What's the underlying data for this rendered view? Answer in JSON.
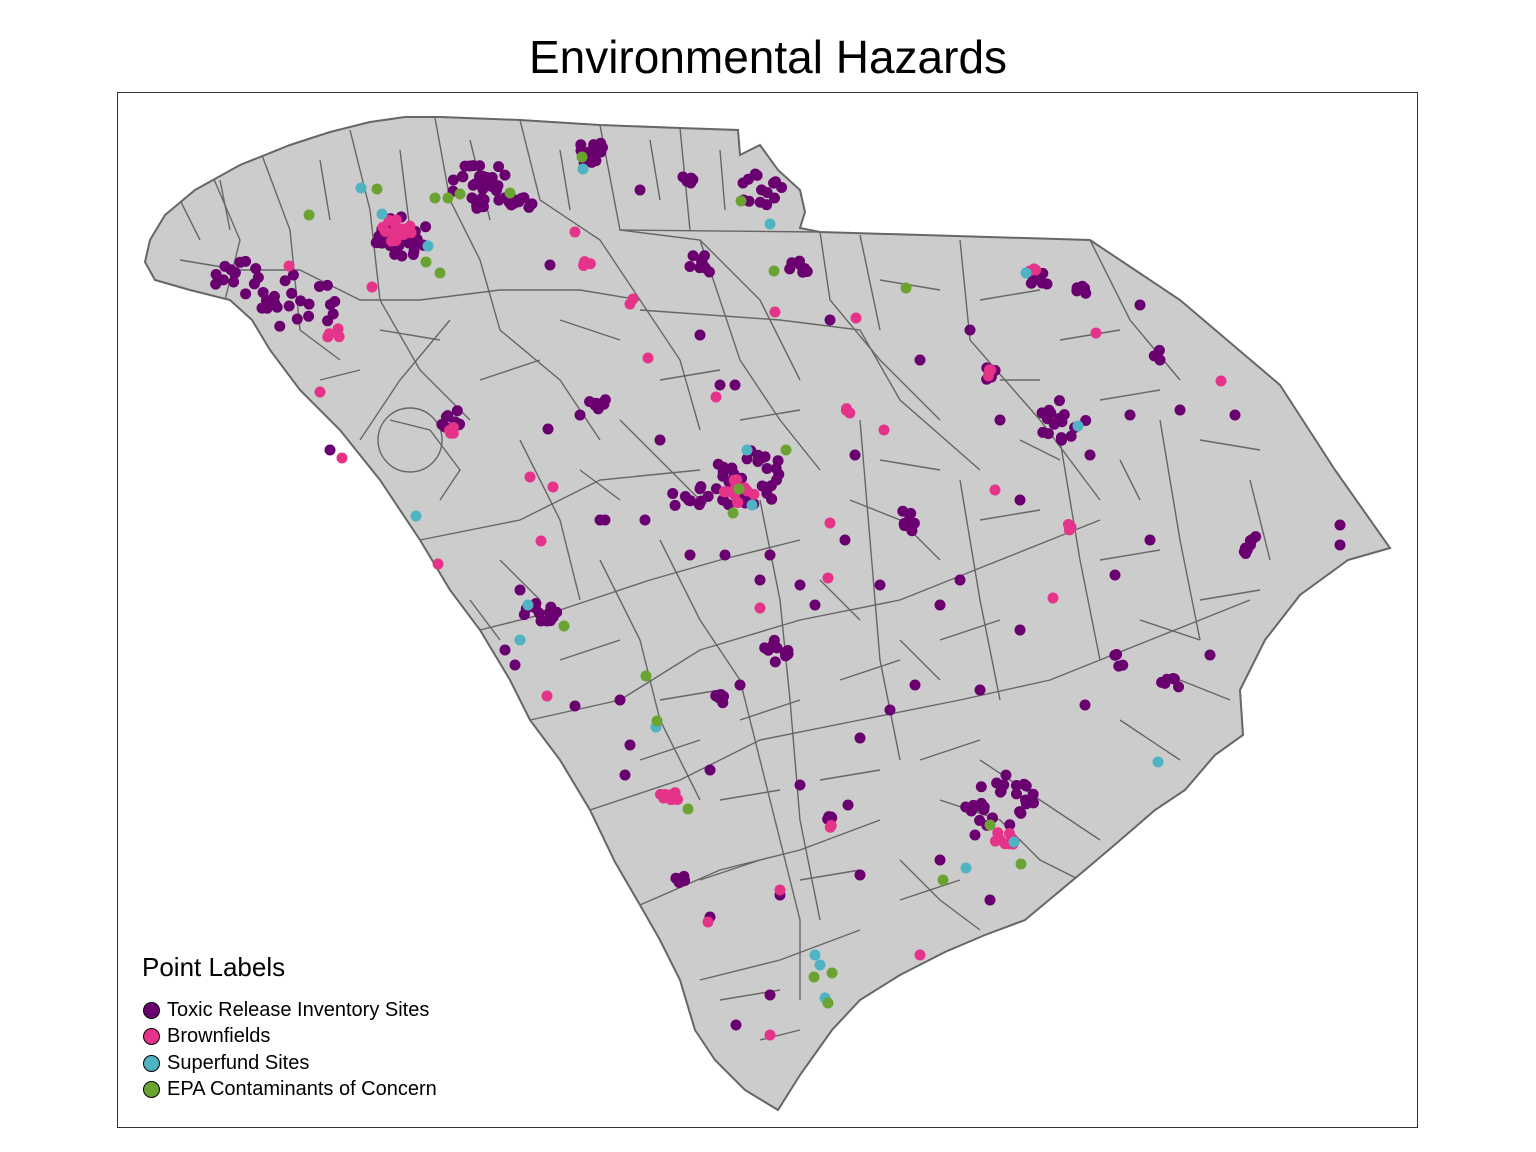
{
  "title": "Environmental Hazards",
  "legend": {
    "title": "Point Labels",
    "items": [
      {
        "label": "Toxic Release Inventory Sites",
        "color": "#6a0070"
      },
      {
        "label": "Brownfields",
        "color": "#e5338a"
      },
      {
        "label": "Superfund Sites",
        "color": "#4fb3c4"
      },
      {
        "label": "EPA Contaminants of Concern",
        "color": "#6aa332"
      }
    ]
  },
  "colors": {
    "land": "#cccccc",
    "boundary": "#666666",
    "frame": "#333333"
  }
}
